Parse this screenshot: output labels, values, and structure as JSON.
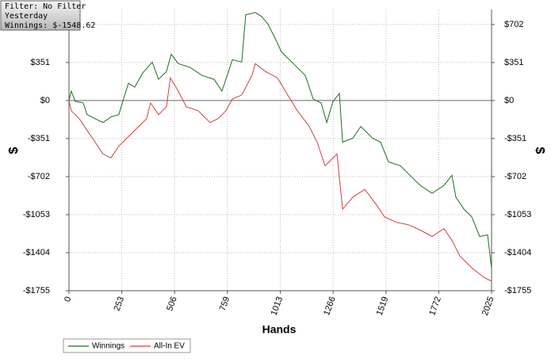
{
  "chart_data": {
    "type": "line",
    "annotations": [
      "Filter: No Filter",
      "Yesterday",
      "Winnings: $-1548.62"
    ],
    "xlabel": "Hands",
    "ylabel": "$",
    "y2label": "$",
    "xlim": [
      0,
      2025
    ],
    "xticks": [
      0,
      253,
      506,
      759,
      1013,
      1266,
      1519,
      1772,
      2025
    ],
    "ylim": [
      -1755,
      840
    ],
    "yticks": [
      {
        "value": -1755,
        "label": "-$1755"
      },
      {
        "value": -1404,
        "label": "-$1404"
      },
      {
        "value": -1053,
        "label": "-$1053"
      },
      {
        "value": -702,
        "label": "-$702"
      },
      {
        "value": -351,
        "label": "-$351"
      },
      {
        "value": 0,
        "label": "$0"
      },
      {
        "value": 351,
        "label": "$351"
      },
      {
        "value": 702,
        "label": "$702"
      }
    ],
    "y2lim": [
      -1755,
      840
    ],
    "y2ticks": [
      {
        "value": -1755,
        "label": "-$1755"
      },
      {
        "value": -1404,
        "label": "-$1404"
      },
      {
        "value": -1053,
        "label": "-$1053"
      },
      {
        "value": -702,
        "label": "-$702"
      },
      {
        "value": -351,
        "label": "-$351"
      },
      {
        "value": 0,
        "label": "$0"
      },
      {
        "value": 351,
        "label": "$351"
      },
      {
        "value": 702,
        "label": "$702"
      }
    ],
    "grid": true,
    "series": [
      {
        "name": "Winnings",
        "color": "#1e6e1e",
        "x": [
          0,
          11,
          30,
          68,
          87,
          125,
          163,
          201,
          239,
          258,
          285,
          315,
          353,
          399,
          429,
          467,
          490,
          524,
          581,
          638,
          695,
          733,
          752,
          783,
          828,
          847,
          893,
          923,
          954,
          992,
          1018,
          1056,
          1094,
          1132,
          1170,
          1208,
          1235,
          1265,
          1296,
          1311,
          1360,
          1398,
          1455,
          1493,
          1531,
          1588,
          1645,
          1683,
          1740,
          1797,
          1835,
          1854,
          1892,
          1930,
          1968,
          2006,
          2025
        ],
        "values": [
          0,
          87,
          -7,
          -22,
          -130,
          -167,
          -203,
          -152,
          -130,
          -7,
          160,
          123,
          254,
          355,
          196,
          268,
          428,
          341,
          305,
          232,
          196,
          87,
          196,
          377,
          355,
          790,
          812,
          776,
          703,
          558,
          450,
          377,
          305,
          232,
          15,
          -22,
          -203,
          -7,
          65,
          -384,
          -348,
          -239,
          -348,
          -384,
          -566,
          -602,
          -711,
          -783,
          -856,
          -783,
          -689,
          -892,
          -1001,
          -1074,
          -1254,
          -1240,
          -1549
        ]
      },
      {
        "name": "All-In EV",
        "color": "#d04040",
        "x": [
          0,
          11,
          49,
          87,
          125,
          163,
          201,
          239,
          277,
          334,
          372,
          391,
          429,
          467,
          486,
          524,
          562,
          619,
          676,
          714,
          752,
          783,
          828,
          877,
          893,
          942,
          999,
          1037,
          1094,
          1151,
          1189,
          1227,
          1284,
          1311,
          1360,
          1417,
          1474,
          1512,
          1569,
          1626,
          1683,
          1740,
          1797,
          1835,
          1873,
          1930,
          1987,
          2025
        ],
        "values": [
          0,
          -94,
          -167,
          -276,
          -384,
          -493,
          -529,
          -420,
          -348,
          -239,
          -167,
          -22,
          -130,
          -58,
          210,
          87,
          -58,
          -94,
          -203,
          -167,
          -94,
          15,
          51,
          232,
          341,
          268,
          210,
          87,
          -94,
          -239,
          -384,
          -602,
          -493,
          -1001,
          -892,
          -820,
          -964,
          -1074,
          -1124,
          -1146,
          -1196,
          -1254,
          -1182,
          -1290,
          -1435,
          -1544,
          -1631,
          -1667
        ]
      }
    ]
  }
}
